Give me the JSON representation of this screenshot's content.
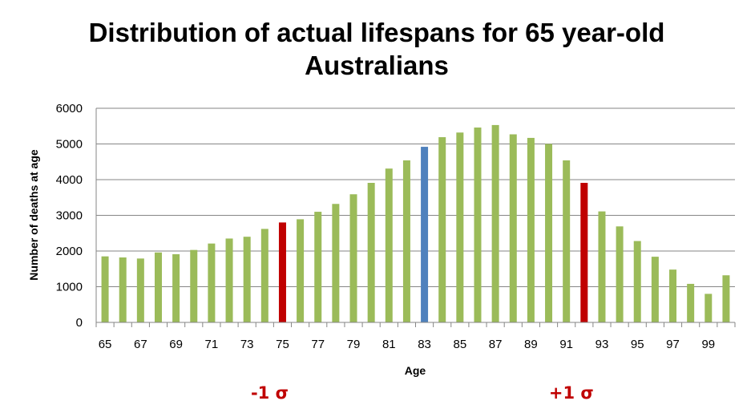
{
  "colors": {
    "normal": "#9bbb59",
    "sigma": "#c00000",
    "mean": "#4f81bd",
    "gridline": "#868686",
    "annotation": "#c00000"
  },
  "chart_data": {
    "type": "bar",
    "title": "Distribution of actual lifespans for 65 year-old Australians",
    "xlabel": "Age",
    "ylabel": "Number of deaths at age",
    "ylim": [
      0,
      6000
    ],
    "yticks": [
      0,
      1000,
      2000,
      3000,
      4000,
      5000,
      6000
    ],
    "grid": true,
    "legend": "none",
    "categories": [
      "65",
      "66",
      "67",
      "68",
      "69",
      "70",
      "71",
      "72",
      "73",
      "74",
      "75",
      "76",
      "77",
      "78",
      "79",
      "80",
      "81",
      "82",
      "83",
      "84",
      "85",
      "86",
      "87",
      "88",
      "89",
      "90",
      "91",
      "92",
      "93",
      "94",
      "95",
      "96",
      "97",
      "98",
      "99",
      "100"
    ],
    "xtick_labels_shown": [
      "65",
      "67",
      "69",
      "71",
      "73",
      "75",
      "77",
      "79",
      "81",
      "83",
      "85",
      "87",
      "89",
      "91",
      "93",
      "95",
      "97",
      "99"
    ],
    "values": [
      1850,
      1820,
      1790,
      1960,
      1910,
      2030,
      2210,
      2350,
      2400,
      2620,
      2800,
      2890,
      3100,
      3320,
      3590,
      3910,
      4310,
      4540,
      4920,
      5190,
      5320,
      5460,
      5530,
      5270,
      5170,
      5000,
      4540,
      3910,
      3110,
      2690,
      2280,
      1840,
      1480,
      1080,
      800,
      1320
    ],
    "highlights": [
      {
        "category": "75",
        "role": "sigma"
      },
      {
        "category": "83",
        "role": "mean"
      },
      {
        "category": "92",
        "role": "sigma"
      }
    ],
    "annotations": [
      {
        "text": "-1 σ",
        "category": "75"
      },
      {
        "text": "+1 σ",
        "category": "92"
      }
    ]
  }
}
